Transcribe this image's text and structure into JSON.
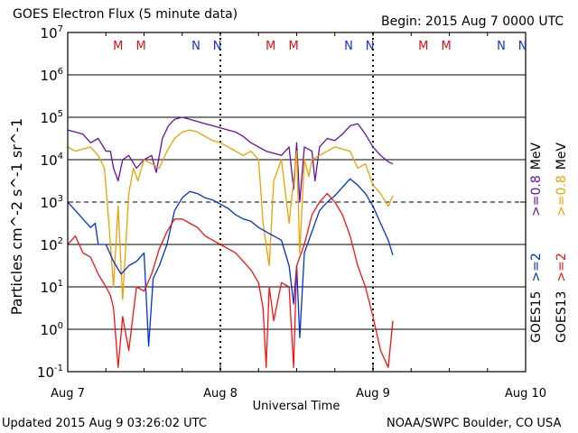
{
  "header": {
    "title": "GOES Electron Flux (5 minute data)",
    "begin": "Begin: 2015 Aug 7 0000 UTC"
  },
  "footer": {
    "updated": "Updated 2015 Aug  9 03:26:02 UTC",
    "credit": "NOAA/SWPC Boulder, CO USA"
  },
  "colors": {
    "goes15_0_8": "#6a0dad",
    "goes13_0_8": "#f0a000",
    "goes15_2": "#0030e0",
    "goes13_2": "#ff1010",
    "marker_M": "#e01010",
    "marker_N": "#1030e0"
  },
  "chart_data": {
    "type": "line",
    "title": "GOES Electron Flux (5 minute data)",
    "xlabel": "Universal Time",
    "ylabel": "Particles cm^-2 s^-1 sr^-1",
    "x_unit": "days since 2015 Aug 7 0000 UTC",
    "xlim": [
      0,
      3
    ],
    "yscale": "log",
    "ylim_exponent": [
      -1,
      7
    ],
    "ytick_labels": [
      {
        "base": "10",
        "exp": "-1"
      },
      {
        "base": "10",
        "exp": "0"
      },
      {
        "base": "10",
        "exp": "1"
      },
      {
        "base": "10",
        "exp": "2"
      },
      {
        "base": "10",
        "exp": "3"
      },
      {
        "base": "10",
        "exp": "4"
      },
      {
        "base": "10",
        "exp": "5"
      },
      {
        "base": "10",
        "exp": "6"
      },
      {
        "base": "10",
        "exp": "7"
      }
    ],
    "xtick_labels": [
      "Aug 7",
      "Aug 8",
      "Aug 9",
      "Aug 10"
    ],
    "dashed_gridline_exponent": 3,
    "markers": [
      {
        "label": "M",
        "x": 0.33
      },
      {
        "label": "M",
        "x": 0.48
      },
      {
        "label": "N",
        "x": 0.84
      },
      {
        "label": "N",
        "x": 0.98
      },
      {
        "label": "M",
        "x": 1.33
      },
      {
        "label": "M",
        "x": 1.48
      },
      {
        "label": "N",
        "x": 1.84
      },
      {
        "label": "N",
        "x": 1.98
      },
      {
        "label": "M",
        "x": 2.33
      },
      {
        "label": "M",
        "x": 2.48
      },
      {
        "label": "N",
        "x": 2.84
      },
      {
        "label": "N",
        "x": 2.98
      }
    ],
    "legend": [
      {
        "satellite": "GOES15",
        "label": ">=2",
        "unit": "",
        "color": "#0030e0"
      },
      {
        "satellite": "GOES13",
        "label": ">=2",
        "unit": "",
        "color": "#ff1010"
      },
      {
        "satellite": "",
        "label": ">=0.8",
        "unit": "MeV",
        "color": "#6a0dad"
      },
      {
        "satellite": "",
        "label": ">=0.8",
        "unit": "MeV",
        "color": "#f0a000"
      }
    ],
    "series": [
      {
        "name": "GOES15 >=0.8 MeV",
        "color": "#6a0dad",
        "x": [
          0.0,
          0.05,
          0.1,
          0.15,
          0.2,
          0.25,
          0.28,
          0.3,
          0.33,
          0.36,
          0.4,
          0.45,
          0.5,
          0.55,
          0.58,
          0.62,
          0.66,
          0.7,
          0.75,
          0.8,
          0.85,
          0.9,
          0.95,
          1.0,
          1.05,
          1.1,
          1.15,
          1.2,
          1.25,
          1.3,
          1.35,
          1.4,
          1.45,
          1.48,
          1.5,
          1.52,
          1.55,
          1.6,
          1.62,
          1.65,
          1.7,
          1.75,
          1.8,
          1.85,
          1.9,
          1.95,
          2.0,
          2.05,
          2.1,
          2.13
        ],
        "y": [
          4.7,
          4.65,
          4.6,
          4.4,
          4.5,
          4.2,
          4.2,
          3.8,
          3.5,
          4.0,
          4.1,
          3.8,
          4.0,
          4.1,
          3.7,
          4.5,
          4.8,
          4.95,
          5.0,
          4.95,
          4.9,
          4.85,
          4.8,
          4.75,
          4.7,
          4.65,
          4.55,
          4.4,
          4.3,
          4.2,
          4.15,
          4.1,
          4.3,
          3.3,
          4.4,
          3.0,
          4.3,
          4.2,
          3.5,
          4.3,
          4.5,
          4.45,
          4.6,
          4.8,
          4.85,
          4.6,
          4.3,
          4.1,
          3.95,
          3.9
        ]
      },
      {
        "name": "GOES13 >=0.8 MeV",
        "color": "#f0a000",
        "x": [
          0.0,
          0.05,
          0.1,
          0.15,
          0.2,
          0.24,
          0.27,
          0.3,
          0.33,
          0.36,
          0.4,
          0.43,
          0.46,
          0.5,
          0.55,
          0.6,
          0.65,
          0.7,
          0.75,
          0.8,
          0.85,
          0.9,
          0.95,
          1.0,
          1.05,
          1.1,
          1.15,
          1.2,
          1.25,
          1.28,
          1.32,
          1.35,
          1.4,
          1.45,
          1.5,
          1.52,
          1.55,
          1.58,
          1.6,
          1.65,
          1.7,
          1.75,
          1.8,
          1.85,
          1.9,
          1.95,
          2.0,
          2.05,
          2.1,
          2.13
        ],
        "y": [
          4.3,
          4.2,
          4.25,
          4.3,
          4.1,
          3.8,
          2.5,
          1.0,
          2.9,
          0.7,
          3.2,
          3.8,
          3.5,
          4.0,
          3.9,
          3.8,
          4.2,
          4.5,
          4.65,
          4.7,
          4.65,
          4.55,
          4.45,
          4.4,
          4.3,
          4.2,
          4.1,
          4.2,
          4.0,
          2.5,
          1.5,
          3.5,
          4.0,
          2.5,
          4.2,
          1.8,
          4.0,
          3.6,
          4.0,
          4.1,
          4.2,
          4.3,
          4.25,
          4.2,
          3.8,
          3.9,
          3.4,
          3.2,
          2.9,
          3.15
        ]
      },
      {
        "name": "GOES15 >=2 MeV",
        "color": "#0030e0",
        "x": [
          0.0,
          0.05,
          0.1,
          0.15,
          0.18,
          0.2,
          0.25,
          0.3,
          0.35,
          0.4,
          0.45,
          0.5,
          0.53,
          0.56,
          0.6,
          0.65,
          0.7,
          0.75,
          0.8,
          0.85,
          0.9,
          0.95,
          1.0,
          1.05,
          1.1,
          1.15,
          1.2,
          1.25,
          1.3,
          1.35,
          1.4,
          1.45,
          1.48,
          1.5,
          1.52,
          1.55,
          1.6,
          1.65,
          1.7,
          1.75,
          1.8,
          1.85,
          1.9,
          1.95,
          2.0,
          2.05,
          2.1,
          2.13
        ],
        "y": [
          3.0,
          2.8,
          2.6,
          2.4,
          2.5,
          2.0,
          2.0,
          1.6,
          1.3,
          1.5,
          1.6,
          1.8,
          -0.4,
          1.2,
          1.5,
          2.0,
          2.8,
          3.1,
          3.25,
          3.2,
          3.1,
          3.05,
          2.95,
          2.85,
          2.7,
          2.6,
          2.55,
          2.4,
          2.3,
          2.2,
          2.1,
          1.5,
          0.6,
          1.5,
          -0.2,
          1.8,
          2.3,
          2.8,
          3.0,
          3.15,
          3.35,
          3.55,
          3.4,
          3.2,
          2.9,
          2.5,
          2.1,
          1.75
        ]
      },
      {
        "name": "GOES13 >=2 MeV",
        "color": "#ff1010",
        "x": [
          0.0,
          0.05,
          0.1,
          0.15,
          0.2,
          0.25,
          0.28,
          0.3,
          0.33,
          0.36,
          0.4,
          0.45,
          0.5,
          0.55,
          0.6,
          0.65,
          0.7,
          0.75,
          0.8,
          0.85,
          0.9,
          0.95,
          1.0,
          1.05,
          1.1,
          1.15,
          1.2,
          1.25,
          1.28,
          1.3,
          1.32,
          1.35,
          1.4,
          1.45,
          1.48,
          1.5,
          1.55,
          1.6,
          1.65,
          1.7,
          1.75,
          1.8,
          1.85,
          1.9,
          1.95,
          2.0,
          2.05,
          2.1,
          2.13
        ],
        "y": [
          2.0,
          2.2,
          1.8,
          1.7,
          1.3,
          1.0,
          0.8,
          0.5,
          -0.9,
          0.3,
          -0.5,
          1.0,
          0.9,
          1.3,
          1.9,
          2.3,
          2.6,
          2.6,
          2.5,
          2.4,
          2.2,
          2.1,
          2.0,
          1.9,
          1.8,
          1.6,
          1.4,
          1.1,
          0.5,
          -0.9,
          1.0,
          0.2,
          1.1,
          1.0,
          -0.9,
          1.5,
          2.0,
          2.7,
          3.0,
          3.2,
          3.0,
          2.7,
          2.2,
          1.5,
          1.0,
          0.3,
          -0.5,
          -0.9,
          0.2
        ]
      }
    ]
  }
}
